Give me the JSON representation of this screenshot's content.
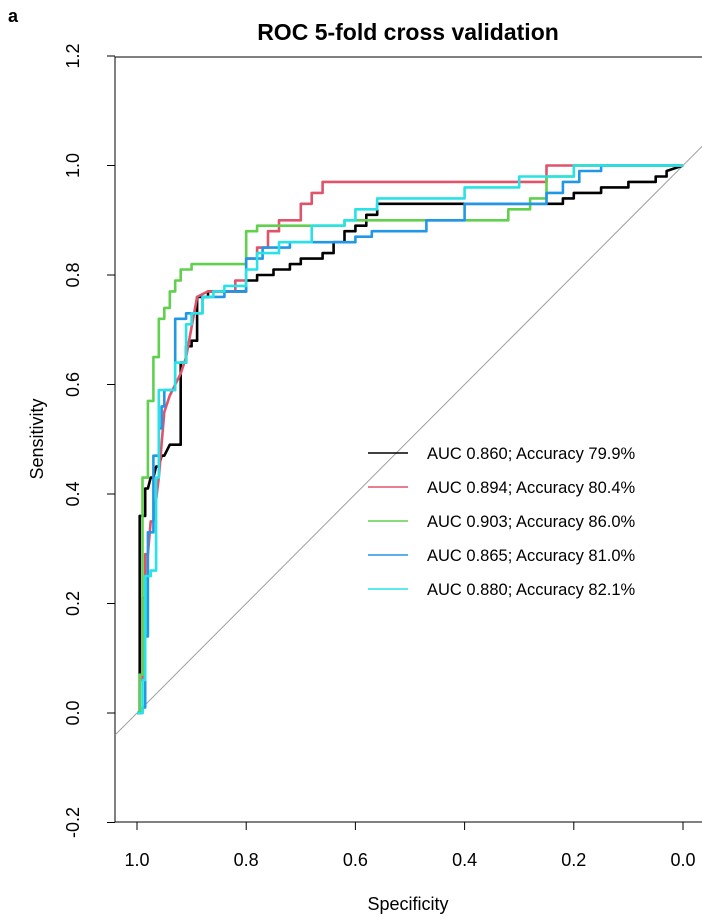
{
  "chart_data": {
    "type": "line",
    "panel_label": "a",
    "title": "ROC 5-fold cross validation",
    "xlabel": "Specificity",
    "ylabel": "Sensitivity",
    "xlim": [
      1.0,
      0.0
    ],
    "ylim": [
      -0.2,
      1.2
    ],
    "x_reversed": true,
    "x_ticks": [
      "1.0",
      "0.8",
      "0.6",
      "0.4",
      "0.2",
      "0.0"
    ],
    "y_ticks": [
      "-0.2",
      "0.0",
      "0.2",
      "0.4",
      "0.6",
      "0.8",
      "1.0",
      "1.2"
    ],
    "grid": false,
    "legend_position": "right",
    "diagonal": {
      "color": "#9e9e9e"
    },
    "series": [
      {
        "name": "AUC 0.860; Accuracy 79.9%",
        "color": "#000000",
        "x": [
          1.0,
          0.995,
          0.995,
          0.985,
          0.985,
          0.98,
          0.975,
          0.97,
          0.965,
          0.96,
          0.955,
          0.95,
          0.94,
          0.935,
          0.92,
          0.92,
          0.91,
          0.91,
          0.9,
          0.9,
          0.89,
          0.89,
          0.87,
          0.87,
          0.85,
          0.85,
          0.82,
          0.82,
          0.8,
          0.8,
          0.78,
          0.78,
          0.75,
          0.75,
          0.72,
          0.72,
          0.7,
          0.7,
          0.66,
          0.66,
          0.64,
          0.64,
          0.62,
          0.62,
          0.6,
          0.6,
          0.58,
          0.58,
          0.56,
          0.56,
          0.3,
          0.3,
          0.22,
          0.22,
          0.2,
          0.2,
          0.15,
          0.15,
          0.1,
          0.1,
          0.05,
          0.05,
          0.03,
          0.03,
          0.0
        ],
        "y": [
          0.0,
          0.0,
          0.36,
          0.36,
          0.41,
          0.41,
          0.43,
          0.43,
          0.45,
          0.45,
          0.47,
          0.47,
          0.49,
          0.49,
          0.49,
          0.64,
          0.64,
          0.67,
          0.67,
          0.68,
          0.68,
          0.76,
          0.76,
          0.77,
          0.77,
          0.77,
          0.77,
          0.77,
          0.77,
          0.79,
          0.79,
          0.8,
          0.8,
          0.81,
          0.81,
          0.82,
          0.82,
          0.83,
          0.83,
          0.84,
          0.84,
          0.86,
          0.86,
          0.88,
          0.88,
          0.89,
          0.89,
          0.91,
          0.91,
          0.93,
          0.93,
          0.93,
          0.93,
          0.94,
          0.94,
          0.95,
          0.95,
          0.96,
          0.96,
          0.97,
          0.97,
          0.98,
          0.98,
          0.99,
          1.0
        ]
      },
      {
        "name": "AUC 0.894; Accuracy 80.4%",
        "color": "#df536b",
        "x": [
          1.0,
          0.995,
          0.995,
          0.99,
          0.99,
          0.985,
          0.985,
          0.98,
          0.975,
          0.97,
          0.96,
          0.96,
          0.95,
          0.95,
          0.94,
          0.94,
          0.92,
          0.92,
          0.91,
          0.91,
          0.89,
          0.89,
          0.87,
          0.87,
          0.82,
          0.82,
          0.8,
          0.8,
          0.78,
          0.78,
          0.76,
          0.76,
          0.74,
          0.74,
          0.7,
          0.7,
          0.68,
          0.68,
          0.66,
          0.66,
          0.4,
          0.4,
          0.25,
          0.25,
          0.1,
          0.1,
          0.0
        ],
        "y": [
          0.0,
          0.0,
          0.06,
          0.06,
          0.21,
          0.21,
          0.29,
          0.29,
          0.35,
          0.35,
          0.43,
          0.43,
          0.55,
          0.55,
          0.58,
          0.58,
          0.62,
          0.62,
          0.65,
          0.65,
          0.76,
          0.76,
          0.77,
          0.77,
          0.77,
          0.79,
          0.79,
          0.83,
          0.83,
          0.85,
          0.85,
          0.88,
          0.88,
          0.9,
          0.9,
          0.93,
          0.93,
          0.95,
          0.95,
          0.97,
          0.97,
          0.97,
          0.97,
          1.0,
          1.0,
          1.0,
          1.0
        ]
      },
      {
        "name": "AUC 0.903; Accuracy 86.0%",
        "color": "#61d04f",
        "x": [
          1.0,
          0.995,
          0.995,
          0.99,
          0.99,
          0.98,
          0.98,
          0.97,
          0.97,
          0.96,
          0.96,
          0.95,
          0.95,
          0.94,
          0.94,
          0.93,
          0.93,
          0.92,
          0.92,
          0.9,
          0.9,
          0.88,
          0.88,
          0.8,
          0.8,
          0.78,
          0.78,
          0.62,
          0.62,
          0.32,
          0.32,
          0.28,
          0.28,
          0.25,
          0.25,
          0.2,
          0.2,
          0.0
        ],
        "y": [
          0.0,
          0.0,
          0.07,
          0.07,
          0.43,
          0.43,
          0.57,
          0.57,
          0.65,
          0.65,
          0.72,
          0.72,
          0.74,
          0.74,
          0.77,
          0.77,
          0.79,
          0.79,
          0.81,
          0.81,
          0.82,
          0.82,
          0.82,
          0.82,
          0.88,
          0.88,
          0.89,
          0.89,
          0.9,
          0.9,
          0.92,
          0.92,
          0.94,
          0.94,
          0.98,
          0.98,
          1.0,
          1.0
        ]
      },
      {
        "name": "AUC 0.865; Accuracy 81.0%",
        "color": "#2297e6",
        "x": [
          1.0,
          0.99,
          0.99,
          0.985,
          0.985,
          0.98,
          0.98,
          0.97,
          0.97,
          0.96,
          0.96,
          0.955,
          0.955,
          0.95,
          0.95,
          0.93,
          0.93,
          0.91,
          0.91,
          0.88,
          0.88,
          0.84,
          0.84,
          0.8,
          0.8,
          0.77,
          0.77,
          0.72,
          0.72,
          0.67,
          0.67,
          0.6,
          0.6,
          0.57,
          0.57,
          0.47,
          0.47,
          0.4,
          0.4,
          0.38,
          0.38,
          0.25,
          0.25,
          0.22,
          0.22,
          0.19,
          0.19,
          0.15,
          0.15,
          0.0
        ],
        "y": [
          0.0,
          0.0,
          0.01,
          0.01,
          0.14,
          0.14,
          0.33,
          0.33,
          0.47,
          0.47,
          0.52,
          0.52,
          0.56,
          0.56,
          0.59,
          0.59,
          0.72,
          0.72,
          0.73,
          0.73,
          0.76,
          0.76,
          0.77,
          0.77,
          0.83,
          0.83,
          0.85,
          0.85,
          0.86,
          0.86,
          0.86,
          0.86,
          0.87,
          0.87,
          0.88,
          0.88,
          0.9,
          0.9,
          0.93,
          0.93,
          0.93,
          0.93,
          0.95,
          0.95,
          0.97,
          0.97,
          0.99,
          0.99,
          1.0,
          1.0
        ]
      },
      {
        "name": "AUC 0.880; Accuracy 82.1%",
        "color": "#28e2e5",
        "x": [
          1.0,
          0.99,
          0.99,
          0.985,
          0.985,
          0.975,
          0.975,
          0.965,
          0.965,
          0.96,
          0.96,
          0.95,
          0.95,
          0.93,
          0.93,
          0.91,
          0.91,
          0.9,
          0.9,
          0.88,
          0.88,
          0.86,
          0.86,
          0.84,
          0.84,
          0.8,
          0.8,
          0.78,
          0.78,
          0.74,
          0.74,
          0.68,
          0.68,
          0.62,
          0.62,
          0.6,
          0.6,
          0.56,
          0.56,
          0.4,
          0.4,
          0.3,
          0.3,
          0.2,
          0.2,
          0.0
        ],
        "y": [
          0.0,
          0.0,
          0.06,
          0.06,
          0.25,
          0.25,
          0.26,
          0.26,
          0.43,
          0.43,
          0.59,
          0.59,
          0.59,
          0.59,
          0.64,
          0.64,
          0.71,
          0.71,
          0.73,
          0.73,
          0.76,
          0.76,
          0.77,
          0.77,
          0.78,
          0.78,
          0.81,
          0.81,
          0.84,
          0.84,
          0.86,
          0.86,
          0.89,
          0.89,
          0.9,
          0.9,
          0.92,
          0.92,
          0.94,
          0.94,
          0.96,
          0.96,
          0.98,
          0.98,
          1.0,
          1.0
        ]
      }
    ]
  }
}
